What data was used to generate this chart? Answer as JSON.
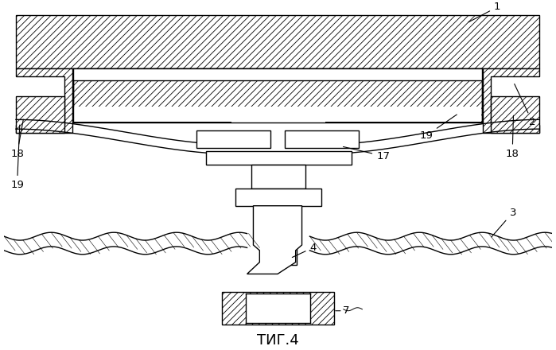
{
  "title": "ΤИГ.4",
  "title_fontsize": 13,
  "figsize": [
    6.99,
    4.4
  ],
  "dpi": 100,
  "bg_color": "#ffffff",
  "lw": 1.0
}
